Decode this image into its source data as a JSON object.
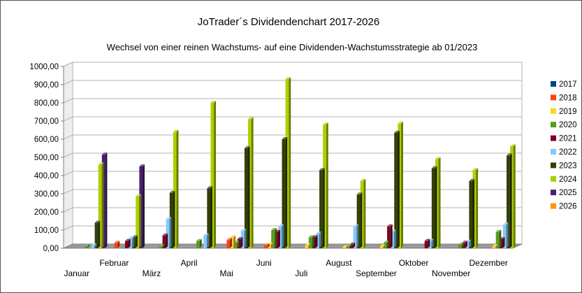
{
  "chart_data": {
    "type": "bar",
    "title": "JoTrader´s Dividendenchart 2017-2026",
    "subtitle": "Wechsel von einer reinen Wachstums- auf eine Dividenden-Wachstumsstrategie ab 01/2023",
    "y_tick_labels": [
      "0,00",
      "100,00",
      "200,00",
      "300,00",
      "400,00",
      "500,00",
      "600,00",
      "700,00",
      "800,00",
      "900,00",
      "1000,00"
    ],
    "ylim": [
      0,
      1000
    ],
    "grid": true,
    "legend_position": "right",
    "categories": [
      "Januar",
      "Februar",
      "März",
      "April",
      "Mai",
      "Juni",
      "Juli",
      "August",
      "September",
      "Oktober",
      "November",
      "Dezember"
    ],
    "series": [
      {
        "name": "2017",
        "color": "#004586",
        "values": [
          0,
          0,
          0,
          0,
          0,
          0,
          0,
          0,
          0,
          0,
          0,
          0
        ]
      },
      {
        "name": "2018",
        "color": "#ff420e",
        "values": [
          0,
          30,
          0,
          0,
          45,
          15,
          0,
          0,
          0,
          0,
          0,
          0
        ]
      },
      {
        "name": "2019",
        "color": "#ffd320",
        "values": [
          0,
          0,
          0,
          0,
          60,
          20,
          15,
          5,
          10,
          0,
          0,
          10
        ]
      },
      {
        "name": "2020",
        "color": "#579d1c",
        "values": [
          10,
          0,
          10,
          40,
          30,
          100,
          60,
          10,
          30,
          0,
          20,
          90
        ]
      },
      {
        "name": "2021",
        "color": "#7e0021",
        "values": [
          0,
          40,
          70,
          0,
          50,
          90,
          60,
          20,
          120,
          40,
          30,
          50
        ]
      },
      {
        "name": "2022",
        "color": "#83caff",
        "values": [
          15,
          55,
          160,
          70,
          95,
          120,
          80,
          120,
          90,
          40,
          35,
          130
        ]
      },
      {
        "name": "2023",
        "color": "#314004",
        "values": [
          140,
          60,
          305,
          330,
          550,
          600,
          430,
          295,
          635,
          440,
          370,
          510
        ]
      },
      {
        "name": "2024",
        "color": "#aecf00",
        "values": [
          460,
          285,
          640,
          800,
          710,
          930,
          680,
          370,
          685,
          490,
          430,
          560
        ]
      },
      {
        "name": "2025",
        "color": "#4b1f6f",
        "values": [
          515,
          450,
          0,
          0,
          0,
          0,
          0,
          0,
          0,
          0,
          0,
          0
        ]
      },
      {
        "name": "2026",
        "color": "#ff950e",
        "values": [
          0,
          0,
          0,
          0,
          0,
          0,
          0,
          0,
          0,
          0,
          0,
          0
        ]
      }
    ]
  }
}
